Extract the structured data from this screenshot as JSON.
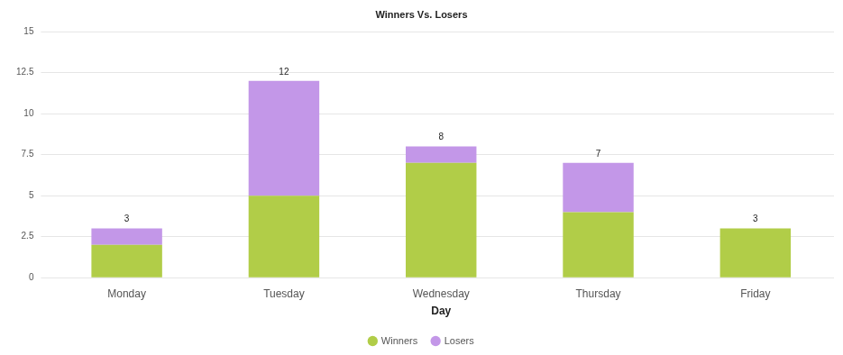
{
  "chart_data": {
    "type": "bar",
    "title": "Winners Vs. Losers",
    "x_label": "Day",
    "categories": [
      "Monday",
      "Tuesday",
      "Wednesday",
      "Thursday",
      "Friday"
    ],
    "series": [
      {
        "name": "Winners",
        "color": "#b1cd48",
        "values": [
          2,
          5,
          7,
          4,
          3
        ]
      },
      {
        "name": "Losers",
        "color": "#c397e8",
        "values": [
          1,
          7,
          1,
          3,
          0
        ]
      }
    ],
    "totals": [
      3,
      12,
      8,
      7,
      3
    ],
    "stacked": true,
    "ylim": [
      0,
      15
    ],
    "yticks": [
      0,
      2.5,
      5,
      7.5,
      10,
      12.5,
      15
    ],
    "grid": true,
    "legend": "bottom"
  }
}
